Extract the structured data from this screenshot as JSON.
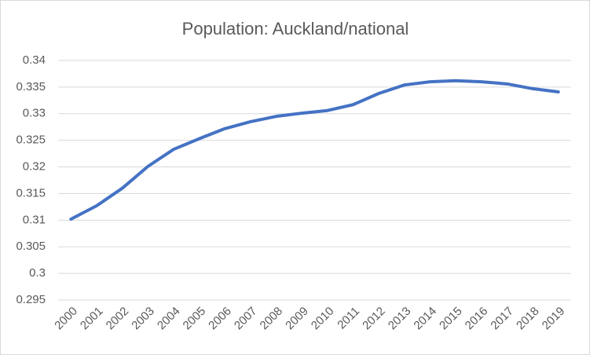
{
  "chart_data": {
    "type": "line",
    "title": "Population: Auckland/national",
    "categories": [
      "2000",
      "2001",
      "2002",
      "2003",
      "2004",
      "2005",
      "2006",
      "2007",
      "2008",
      "2009",
      "2010",
      "2011",
      "2012",
      "2013",
      "2014",
      "2015",
      "2016",
      "2017",
      "2018",
      "2019"
    ],
    "series": [
      {
        "color": "#4472c4",
        "values": [
          0.3102,
          0.3127,
          0.316,
          0.3201,
          0.3233,
          0.3253,
          0.3272,
          0.3285,
          0.3295,
          0.3301,
          0.3306,
          0.3317,
          0.3338,
          0.3354,
          0.336,
          0.3362,
          0.336,
          0.3356,
          0.3347,
          0.3341
        ]
      }
    ],
    "ylim": [
      0.295,
      0.34
    ],
    "yticks": [
      0.295,
      0.3,
      0.305,
      0.31,
      0.315,
      0.32,
      0.325,
      0.33,
      0.335,
      0.34
    ],
    "grid": true
  }
}
